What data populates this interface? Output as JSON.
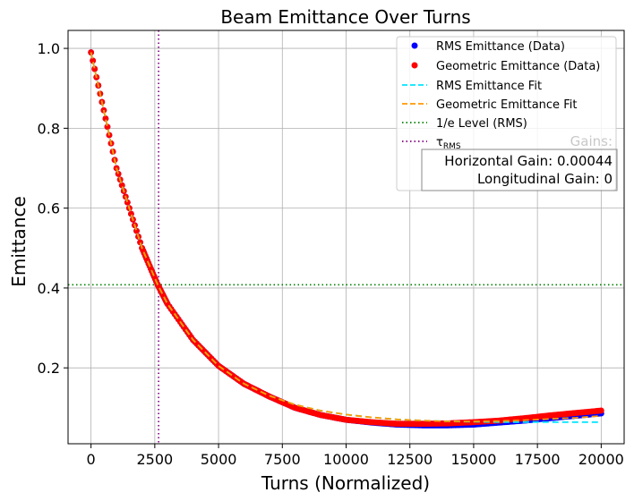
{
  "chart_data": {
    "type": "line",
    "title": "Beam Emittance Over Turns",
    "xlabel": "Turns (Normalized)",
    "ylabel": "Emittance",
    "xlim": [
      -900,
      20900
    ],
    "ylim": [
      0.01,
      1.045
    ],
    "xticks": [
      0,
      2500,
      5000,
      7500,
      10000,
      12500,
      15000,
      17500,
      20000
    ],
    "xtick_labels": [
      "0",
      "2500",
      "5000",
      "7500",
      "10000",
      "12500",
      "15000",
      "17500",
      "20000"
    ],
    "yticks": [
      0.2,
      0.4,
      0.6,
      0.8,
      1.0
    ],
    "ytick_labels": [
      "0.2",
      "0.4",
      "0.6",
      "0.8",
      "1.0"
    ],
    "grid": true,
    "legend_position": "top-right",
    "colors": {
      "rms_data": "#0000ff",
      "geo_data": "#ff0000",
      "rms_fit": "#00e5ff",
      "geo_fit": "#ff9900",
      "one_over_e": "#008000",
      "tau": "#800080"
    },
    "series": [
      {
        "name": "RMS Emittance (Data)",
        "style": "dots",
        "x": [
          0,
          1000,
          2000,
          2600,
          3000,
          4000,
          5000,
          6000,
          7000,
          8000,
          9000,
          10000,
          11000,
          12000,
          13000,
          14000,
          15000,
          16000,
          17000,
          18000,
          19000,
          20000
        ],
        "y": [
          0.99,
          0.7,
          0.5,
          0.41,
          0.36,
          0.27,
          0.205,
          0.16,
          0.128,
          0.1,
          0.082,
          0.07,
          0.063,
          0.058,
          0.056,
          0.056,
          0.058,
          0.063,
          0.068,
          0.074,
          0.08,
          0.086
        ]
      },
      {
        "name": "Geometric Emittance (Data)",
        "style": "dots",
        "x": [
          0,
          1000,
          2000,
          2600,
          3000,
          4000,
          5000,
          6000,
          7000,
          8000,
          9000,
          10000,
          11000,
          12000,
          13000,
          14000,
          15000,
          16000,
          17000,
          18000,
          19000,
          20000
        ],
        "y": [
          0.99,
          0.7,
          0.5,
          0.41,
          0.36,
          0.27,
          0.205,
          0.16,
          0.128,
          0.1,
          0.082,
          0.07,
          0.064,
          0.06,
          0.06,
          0.061,
          0.064,
          0.068,
          0.074,
          0.081,
          0.087,
          0.093
        ]
      },
      {
        "name": "RMS Emittance Fit",
        "style": "dashed",
        "x": [
          0,
          1000,
          2000,
          2600,
          3000,
          4000,
          5000,
          6000,
          7000,
          8000,
          9000,
          10000,
          11000,
          12000,
          13000,
          14000,
          15000,
          16000,
          17000,
          18000,
          19000,
          20000
        ],
        "y": [
          0.99,
          0.7,
          0.5,
          0.41,
          0.36,
          0.27,
          0.205,
          0.16,
          0.13,
          0.108,
          0.093,
          0.083,
          0.076,
          0.071,
          0.068,
          0.066,
          0.065,
          0.064,
          0.064,
          0.064,
          0.064,
          0.064
        ]
      },
      {
        "name": "Geometric Emittance Fit",
        "style": "dashed",
        "x": [
          0,
          1000,
          2000,
          2600,
          3000,
          4000,
          5000,
          6000,
          7000,
          8000,
          9000,
          10000,
          11000,
          12000,
          13000,
          14000,
          15000,
          16000,
          17000,
          18000,
          19000,
          20000
        ],
        "y": [
          0.99,
          0.7,
          0.5,
          0.41,
          0.36,
          0.27,
          0.205,
          0.16,
          0.13,
          0.108,
          0.093,
          0.083,
          0.076,
          0.071,
          0.068,
          0.066,
          0.066,
          0.067,
          0.069,
          0.072,
          0.075,
          0.08
        ]
      }
    ],
    "reference_lines": [
      {
        "name": "1/e Level (RMS)",
        "orientation": "horizontal",
        "value": 0.408,
        "style": "dotted"
      },
      {
        "name": "τRMS",
        "orientation": "vertical",
        "value": 2650,
        "style": "dotted"
      }
    ],
    "legend": {
      "items": [
        "RMS Emittance (Data)",
        "Geometric Emittance (Data)",
        "RMS Emittance Fit",
        "Geometric Emittance Fit",
        "1/e Level (RMS)"
      ],
      "tau_symbol": "τ",
      "tau_subscript": "RMS"
    },
    "annotation": {
      "heading": "Gains:",
      "horizontal": "Horizontal Gain: 0.00044",
      "longitudinal": "Longitudinal Gain: 0"
    }
  }
}
